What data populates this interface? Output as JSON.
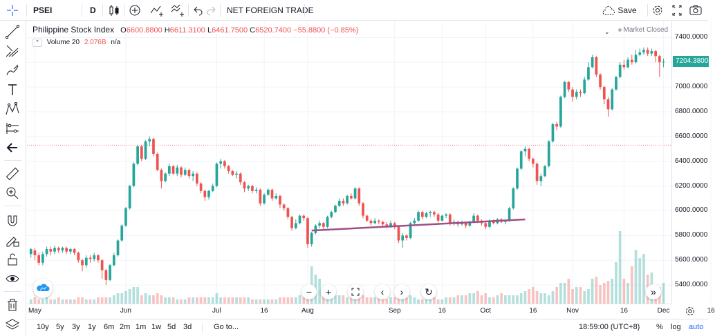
{
  "toolbar": {
    "symbol": "PSEI",
    "interval": "D",
    "indicator_label": "NET FOREIGN TRADE",
    "save_label": "Save"
  },
  "legend": {
    "title": "Philippine Stock Index",
    "open_label": "O",
    "open": "6600.8800",
    "high_label": "H",
    "high": "6611.3100",
    "low_label": "L",
    "low": "6461.7500",
    "close_label": "C",
    "close": "6520.7400",
    "change": "−55.8800 (−0.85%)",
    "market_status": "Market Closed",
    "volume_label": "Volume 20",
    "volume_value": "2.076B",
    "volume_na": "n/a"
  },
  "price_axis": {
    "ticks": [
      "7400.0000",
      "7200.0000",
      "7000.0000",
      "6800.0000",
      "6600.0000",
      "6400.0000",
      "6200.0000",
      "6000.0000",
      "5800.0000",
      "5600.0000",
      "5400.0000"
    ],
    "current": "7204.3800"
  },
  "time_axis": {
    "labels": [
      "May",
      "Jun",
      "Jul",
      "16",
      "Aug",
      "Sep",
      "16",
      "Oct",
      "16",
      "Nov",
      "16",
      "Dec",
      "16"
    ]
  },
  "bottombar": {
    "ranges": [
      "10y",
      "5y",
      "3y",
      "1y",
      "6m",
      "2m",
      "1m",
      "1w",
      "5d",
      "3d"
    ],
    "goto": "Go to...",
    "time": "18:59:00 (UTC+8)",
    "percent": "%",
    "log": "log",
    "auto": "auto"
  },
  "colors": {
    "up": "#26a69a",
    "down": "#ef5350",
    "trendline": "#9c4f86",
    "level_line": "#ef5350",
    "accent": "#2962ff"
  },
  "chart_data": {
    "type": "candlestick",
    "symbol": "PSEI",
    "interval": "D",
    "ylim": [
      5250,
      7530
    ],
    "x_labels": [
      "May",
      "Jun",
      "Jul",
      "16",
      "Aug",
      "Sep",
      "16",
      "Oct",
      "16",
      "Nov",
      "16",
      "Dec",
      "16"
    ],
    "candles": [
      [
        5650,
        5690,
        5620,
        5700
      ],
      [
        5680,
        5640,
        5600,
        5700
      ],
      [
        5640,
        5580,
        5560,
        5660
      ],
      [
        5580,
        5650,
        5560,
        5670
      ],
      [
        5650,
        5690,
        5630,
        5710
      ],
      [
        5690,
        5670,
        5640,
        5710
      ],
      [
        5670,
        5700,
        5650,
        5720
      ],
      [
        5700,
        5680,
        5660,
        5710
      ],
      [
        5680,
        5700,
        5660,
        5710
      ],
      [
        5700,
        5670,
        5650,
        5710
      ],
      [
        5670,
        5690,
        5650,
        5700
      ],
      [
        5690,
        5660,
        5640,
        5700
      ],
      [
        5660,
        5600,
        5580,
        5670
      ],
      [
        5600,
        5560,
        5510,
        5610
      ],
      [
        5560,
        5620,
        5540,
        5640
      ],
      [
        5620,
        5610,
        5580,
        5640
      ],
      [
        5610,
        5640,
        5590,
        5660
      ],
      [
        5640,
        5600,
        5580,
        5650
      ],
      [
        5600,
        5520,
        5450,
        5610
      ],
      [
        5520,
        5440,
        5400,
        5530
      ],
      [
        5440,
        5560,
        5430,
        5570
      ],
      [
        5560,
        5640,
        5550,
        5660
      ],
      [
        5640,
        5760,
        5630,
        5770
      ],
      [
        5760,
        5880,
        5750,
        5890
      ],
      [
        5880,
        6020,
        5870,
        6030
      ],
      [
        6020,
        6200,
        6010,
        6210
      ],
      [
        6200,
        6380,
        6190,
        6390
      ],
      [
        6380,
        6520,
        6370,
        6530
      ],
      [
        6520,
        6420,
        6400,
        6530
      ],
      [
        6420,
        6560,
        6410,
        6570
      ],
      [
        6560,
        6580,
        6520,
        6600
      ],
      [
        6580,
        6460,
        6440,
        6590
      ],
      [
        6460,
        6330,
        6320,
        6470
      ],
      [
        6330,
        6240,
        6180,
        6340
      ],
      [
        6240,
        6300,
        6230,
        6310
      ],
      [
        6300,
        6360,
        6280,
        6380
      ],
      [
        6360,
        6300,
        6290,
        6370
      ],
      [
        6300,
        6350,
        6280,
        6370
      ],
      [
        6350,
        6290,
        6270,
        6360
      ],
      [
        6290,
        6330,
        6280,
        6350
      ],
      [
        6330,
        6280,
        6260,
        6340
      ],
      [
        6280,
        6300,
        6240,
        6320
      ],
      [
        6300,
        6220,
        6200,
        6310
      ],
      [
        6220,
        6160,
        6140,
        6230
      ],
      [
        6160,
        6110,
        6080,
        6170
      ],
      [
        6110,
        6160,
        6090,
        6170
      ],
      [
        6160,
        6200,
        6150,
        6220
      ],
      [
        6200,
        6380,
        6190,
        6390
      ],
      [
        6380,
        6400,
        6340,
        6420
      ],
      [
        6400,
        6360,
        6340,
        6410
      ],
      [
        6360,
        6320,
        6300,
        6370
      ],
      [
        6320,
        6290,
        6280,
        6330
      ],
      [
        6290,
        6300,
        6260,
        6320
      ],
      [
        6300,
        6230,
        6210,
        6310
      ],
      [
        6230,
        6180,
        6150,
        6240
      ],
      [
        6180,
        6200,
        6160,
        6210
      ],
      [
        6200,
        6160,
        6140,
        6210
      ],
      [
        6160,
        6170,
        6140,
        6190
      ],
      [
        6170,
        6060,
        6040,
        6180
      ],
      [
        6060,
        6130,
        6050,
        6140
      ],
      [
        6130,
        6170,
        6120,
        6180
      ],
      [
        6170,
        6100,
        6080,
        6180
      ],
      [
        6100,
        6120,
        6090,
        6140
      ],
      [
        6120,
        6050,
        6020,
        6130
      ],
      [
        6050,
        6020,
        6000,
        6060
      ],
      [
        6020,
        5950,
        5930,
        6030
      ],
      [
        5950,
        5860,
        5840,
        5960
      ],
      [
        5860,
        5900,
        5850,
        5930
      ],
      [
        5900,
        5960,
        5890,
        5970
      ],
      [
        5960,
        5940,
        5920,
        5970
      ],
      [
        5940,
        5730,
        5700,
        5950
      ],
      [
        5730,
        5820,
        5710,
        5830
      ],
      [
        5820,
        5880,
        5810,
        5890
      ],
      [
        5880,
        5900,
        5860,
        5920
      ],
      [
        5900,
        5870,
        5850,
        5910
      ],
      [
        5870,
        5950,
        5860,
        5960
      ],
      [
        5950,
        5990,
        5940,
        6000
      ],
      [
        5990,
        6040,
        5980,
        6050
      ],
      [
        6040,
        6080,
        6030,
        6100
      ],
      [
        6080,
        6060,
        6040,
        6100
      ],
      [
        6060,
        6120,
        6050,
        6130
      ],
      [
        6120,
        6100,
        6090,
        6140
      ],
      [
        6100,
        6180,
        6090,
        6190
      ],
      [
        6180,
        6060,
        6040,
        6190
      ],
      [
        6060,
        5960,
        5940,
        6070
      ],
      [
        5960,
        5920,
        5910,
        5970
      ],
      [
        5920,
        5900,
        5880,
        5930
      ],
      [
        5900,
        5920,
        5890,
        5940
      ],
      [
        5920,
        5910,
        5890,
        5930
      ],
      [
        5910,
        5890,
        5870,
        5920
      ],
      [
        5890,
        5870,
        5860,
        5910
      ],
      [
        5870,
        5900,
        5860,
        5920
      ],
      [
        5900,
        5870,
        5850,
        5910
      ],
      [
        5870,
        5760,
        5740,
        5880
      ],
      [
        5760,
        5800,
        5700,
        5820
      ],
      [
        5800,
        5780,
        5760,
        5810
      ],
      [
        5780,
        5900,
        5770,
        5910
      ],
      [
        5900,
        5920,
        5890,
        5940
      ],
      [
        5920,
        5990,
        5910,
        6000
      ],
      [
        5990,
        5950,
        5930,
        6000
      ],
      [
        5950,
        5980,
        5940,
        5990
      ],
      [
        5980,
        5990,
        5950,
        6000
      ],
      [
        5990,
        5970,
        5950,
        6000
      ],
      [
        5970,
        5920,
        5900,
        5980
      ],
      [
        5920,
        5960,
        5910,
        5970
      ],
      [
        5960,
        5970,
        5940,
        5980
      ],
      [
        5970,
        5900,
        5880,
        5980
      ],
      [
        5900,
        5910,
        5880,
        5930
      ],
      [
        5910,
        5890,
        5870,
        5920
      ],
      [
        5890,
        5900,
        5880,
        5920
      ],
      [
        5900,
        5880,
        5860,
        5910
      ],
      [
        5880,
        5910,
        5870,
        5920
      ],
      [
        5910,
        5960,
        5900,
        5980
      ],
      [
        5960,
        5920,
        5900,
        5970
      ],
      [
        5920,
        5900,
        5880,
        5930
      ],
      [
        5900,
        5870,
        5850,
        5910
      ],
      [
        5870,
        5920,
        5860,
        5930
      ],
      [
        5920,
        5900,
        5890,
        5930
      ],
      [
        5900,
        5930,
        5890,
        5940
      ],
      [
        5930,
        5910,
        5900,
        5940
      ],
      [
        5910,
        5920,
        5890,
        5930
      ],
      [
        5920,
        6020,
        5910,
        6030
      ],
      [
        6020,
        6180,
        6010,
        6190
      ],
      [
        6180,
        6340,
        6170,
        6350
      ],
      [
        6340,
        6480,
        6330,
        6490
      ],
      [
        6480,
        6500,
        6440,
        6520
      ],
      [
        6500,
        6420,
        6400,
        6510
      ],
      [
        6420,
        6380,
        6350,
        6430
      ],
      [
        6380,
        6240,
        6210,
        6390
      ],
      [
        6240,
        6280,
        6200,
        6300
      ],
      [
        6280,
        6360,
        6270,
        6370
      ],
      [
        6360,
        6560,
        6350,
        6570
      ],
      [
        6560,
        6700,
        6550,
        6710
      ],
      [
        6700,
        6680,
        6650,
        6720
      ],
      [
        6680,
        6920,
        6670,
        6930
      ],
      [
        6920,
        7040,
        6910,
        7050
      ],
      [
        7040,
        6980,
        6960,
        7050
      ],
      [
        6980,
        6920,
        6880,
        7000
      ],
      [
        6920,
        6960,
        6900,
        6980
      ],
      [
        6960,
        6950,
        6920,
        6980
      ],
      [
        6950,
        7060,
        6940,
        7080
      ],
      [
        7060,
        7160,
        7050,
        7200
      ],
      [
        7160,
        7240,
        7150,
        7260
      ],
      [
        7240,
        7100,
        7080,
        7250
      ],
      [
        7100,
        7000,
        6980,
        7110
      ],
      [
        7000,
        6900,
        6860,
        7010
      ],
      [
        6900,
        6820,
        6760,
        6920
      ],
      [
        6820,
        6980,
        6810,
        6990
      ],
      [
        6980,
        7080,
        6970,
        7090
      ],
      [
        7080,
        7180,
        7070,
        7200
      ],
      [
        7180,
        7160,
        7140,
        7220
      ],
      [
        7160,
        7220,
        7150,
        7240
      ],
      [
        7220,
        7200,
        7180,
        7260
      ],
      [
        7200,
        7260,
        7190,
        7300
      ],
      [
        7260,
        7280,
        7250,
        7310
      ],
      [
        7280,
        7300,
        7260,
        7320
      ],
      [
        7300,
        7270,
        7250,
        7320
      ],
      [
        7270,
        7290,
        7250,
        7310
      ],
      [
        7290,
        7250,
        7200,
        7300
      ],
      [
        7250,
        7200,
        7080,
        7260
      ],
      [
        7200,
        7204.38,
        7160,
        7230
      ]
    ],
    "volume": [
      2,
      3,
      2,
      2,
      3,
      2,
      2,
      3,
      2,
      2,
      2,
      2,
      3,
      3,
      2,
      2,
      2,
      3,
      3,
      3,
      3,
      4,
      5,
      5,
      6,
      7,
      8,
      8,
      4,
      5,
      4,
      4,
      5,
      4,
      3,
      3,
      3,
      2,
      2,
      2,
      3,
      3,
      3,
      3,
      3,
      3,
      3,
      5,
      3,
      3,
      3,
      3,
      3,
      3,
      3,
      3,
      2,
      2,
      2,
      2,
      2,
      2,
      2,
      3,
      3,
      3,
      3,
      3,
      4,
      3,
      5,
      18,
      14,
      12,
      8,
      6,
      5,
      4,
      4,
      4,
      3,
      4,
      5,
      6,
      4,
      3,
      3,
      3,
      3,
      3,
      2,
      3,
      3,
      4,
      3,
      3,
      4,
      3,
      2,
      2,
      2,
      2,
      3,
      2,
      2,
      3,
      3,
      3,
      4,
      4,
      4,
      5,
      5,
      6,
      4,
      5,
      3,
      3,
      4,
      5,
      4,
      4,
      4,
      4,
      5,
      6,
      7,
      8,
      6,
      5,
      5,
      4,
      6,
      8,
      10,
      10,
      12,
      7,
      8,
      8,
      6,
      7,
      12,
      13,
      9,
      10,
      11,
      12,
      20,
      35,
      12,
      10,
      18,
      26,
      22,
      24,
      14,
      15,
      9,
      8,
      10,
      9
    ],
    "trendline": [
      [
        71,
        5840
      ],
      [
        125,
        5930
      ]
    ],
    "horizontal_level": 6530,
    "current_price": 7204.38
  }
}
